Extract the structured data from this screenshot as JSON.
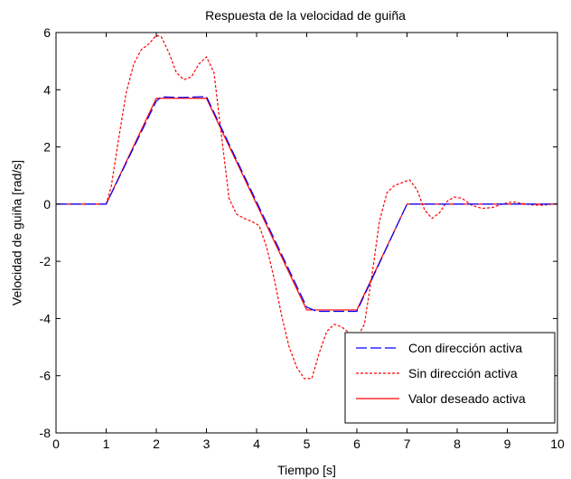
{
  "chart_data": {
    "type": "line",
    "title": "Respuesta de la velocidad de guiña",
    "xlabel": "Tiempo [s]",
    "ylabel": "Velocidad de guiña [rad/s]",
    "xlim": [
      0,
      10
    ],
    "ylim": [
      -8,
      6
    ],
    "xticks": [
      0,
      1,
      2,
      3,
      4,
      5,
      6,
      7,
      8,
      9,
      10
    ],
    "yticks": [
      -8,
      -6,
      -4,
      -2,
      0,
      2,
      4,
      6
    ],
    "xtick_labels": [
      "0",
      "1",
      "2",
      "3",
      "4",
      "5",
      "6",
      "7",
      "8",
      "9",
      "10"
    ],
    "ytick_labels": [
      "-8",
      "-6",
      "-4",
      "-2",
      "0",
      "2",
      "4",
      "6"
    ],
    "grid": false,
    "legend_position": "bottom-right",
    "series": [
      {
        "name": "Con dirección activa",
        "color": "#0000ff",
        "style": "dashed",
        "x": [
          0,
          1.0,
          2.0,
          2.1,
          2.5,
          3.0,
          5.0,
          5.2,
          6.0,
          7.0,
          10
        ],
        "y": [
          0,
          0,
          3.6,
          3.75,
          3.73,
          3.76,
          -3.6,
          -3.75,
          -3.75,
          0,
          0
        ]
      },
      {
        "name": "Sin dirección activa",
        "color": "#ff0000",
        "style": "dotted",
        "x": [
          0,
          1.0,
          1.1,
          1.25,
          1.4,
          1.55,
          1.7,
          1.85,
          2.0,
          2.1,
          2.25,
          2.4,
          2.55,
          2.7,
          2.85,
          3.0,
          3.15,
          3.3,
          3.45,
          3.6,
          3.75,
          3.9,
          4.05,
          4.2,
          4.35,
          4.5,
          4.65,
          4.8,
          4.95,
          5.1,
          5.25,
          5.4,
          5.55,
          5.7,
          5.85,
          6.0,
          6.15,
          6.3,
          6.45,
          6.6,
          6.75,
          6.9,
          7.05,
          7.2,
          7.35,
          7.5,
          7.65,
          7.8,
          7.95,
          8.1,
          8.3,
          8.5,
          8.7,
          8.9,
          9.1,
          9.3,
          9.5,
          9.7,
          9.9,
          10
        ],
        "y": [
          0,
          0,
          0.6,
          2.3,
          3.9,
          4.9,
          5.4,
          5.6,
          5.9,
          5.85,
          5.3,
          4.6,
          4.35,
          4.45,
          4.9,
          5.15,
          4.6,
          2.4,
          0.2,
          -0.35,
          -0.5,
          -0.6,
          -0.75,
          -1.5,
          -2.6,
          -3.9,
          -5.0,
          -5.7,
          -6.1,
          -6.1,
          -5.2,
          -4.45,
          -4.2,
          -4.3,
          -4.5,
          -4.7,
          -4.2,
          -2.5,
          -0.6,
          0.4,
          0.65,
          0.75,
          0.85,
          0.5,
          -0.2,
          -0.5,
          -0.3,
          0.1,
          0.25,
          0.2,
          -0.05,
          -0.15,
          -0.12,
          0.0,
          0.08,
          0.02,
          -0.03,
          -0.04,
          0.0,
          0.0
        ]
      },
      {
        "name": "Valor deseado activa",
        "color": "#ff0000",
        "style": "solid",
        "x": [
          0,
          1.0,
          2.0,
          3.0,
          5.0,
          6.0,
          7.0,
          10
        ],
        "y": [
          0,
          0,
          3.7,
          3.7,
          -3.7,
          -3.7,
          0,
          0
        ]
      }
    ]
  }
}
